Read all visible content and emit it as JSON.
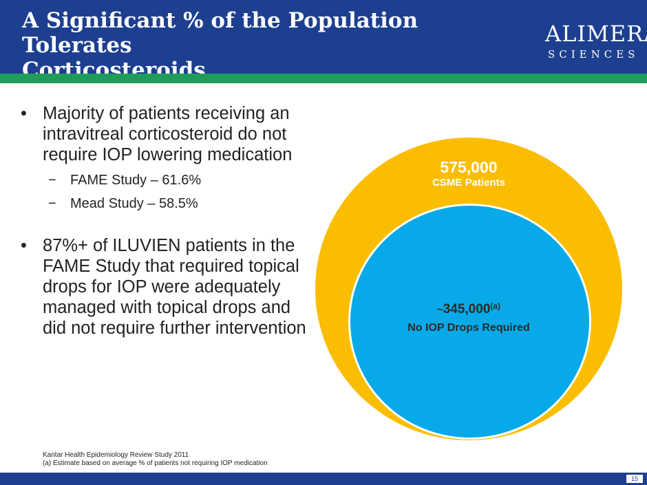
{
  "header": {
    "title_line1": "A Significant % of the Population Tolerates",
    "title_line2": "Corticosteroids",
    "logo_word": "ALIMERA",
    "logo_sub": "SCIENCES",
    "colors": {
      "header_bg": "#1d3f8f",
      "accent_bar": "#1f9c5a"
    }
  },
  "bullets": [
    {
      "marker": "•",
      "text": "Majority of patients receiving an intravitreal corticosteroid do not require IOP lowering medication",
      "subs": [
        {
          "marker": "−",
          "text": "FAME Study – 61.6%"
        },
        {
          "marker": "−",
          "text": "Mead Study – 58.5%"
        }
      ]
    },
    {
      "marker": "•",
      "text": "87%+ of ILUVIEN patients in the FAME Study that required topical drops for IOP were adequately managed with topical drops and did not require further intervention"
    }
  ],
  "diagram": {
    "outer": {
      "value": "575,000",
      "label": "CSME Patients",
      "color": "#fbbd00"
    },
    "inner": {
      "prefix": "~",
      "value": "345,000",
      "superscript": "(a)",
      "label": "No IOP Drops Required",
      "color": "#08a9e8"
    }
  },
  "footnotes": {
    "line1": "Kantar Health Epidemiology Review Study 2011",
    "line2": "(a) Estimate based on average % of patients not requiring IOP medication"
  },
  "page_number": "15"
}
